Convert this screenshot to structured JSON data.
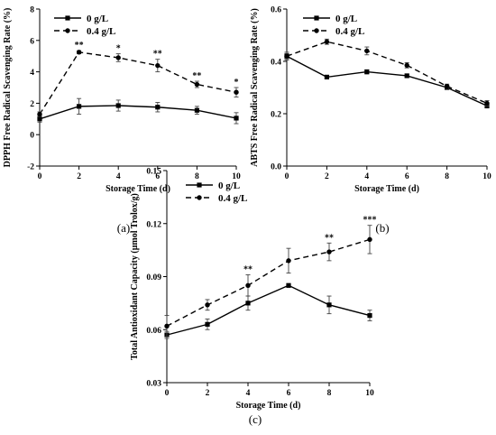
{
  "chart_data": [
    {
      "type": "line",
      "panel": "(a)",
      "xlabel": "Storage Time (d)",
      "ylabel": "DPPH Free Radical Scavenging Rate (%)",
      "x": [
        0,
        2,
        4,
        6,
        8,
        10
      ],
      "xlim": [
        0,
        10
      ],
      "ylim": [
        -2,
        8
      ],
      "yticks": [
        "-2",
        "0",
        "2",
        "4",
        "6",
        "8"
      ],
      "xticks": [
        "0",
        "2",
        "4",
        "6",
        "8",
        "10"
      ],
      "legend": "top-left",
      "series": [
        {
          "name": "0 g/L",
          "style": "solid",
          "marker": "square",
          "values": [
            1.0,
            1.8,
            1.85,
            1.75,
            1.55,
            1.05
          ],
          "errors": [
            0.2,
            0.5,
            0.35,
            0.3,
            0.25,
            0.35
          ]
        },
        {
          "name": "0.4 g/L",
          "style": "dashed",
          "marker": "circle",
          "values": [
            1.3,
            5.25,
            4.9,
            4.4,
            3.2,
            2.7
          ],
          "errors": [
            0.15,
            0.1,
            0.25,
            0.4,
            0.2,
            0.3
          ]
        }
      ],
      "annotations": [
        "",
        "**",
        "*",
        "**",
        "**",
        "*"
      ]
    },
    {
      "type": "line",
      "panel": "(b)",
      "xlabel": "Storage Time (d)",
      "ylabel": "ABTS Free Radical Scavenging Rate (%)",
      "x": [
        0,
        2,
        4,
        6,
        8,
        10
      ],
      "xlim": [
        0,
        10
      ],
      "ylim": [
        0,
        0.6
      ],
      "yticks": [
        "0.0",
        "0.2",
        "0.4",
        "0.6"
      ],
      "xticks": [
        "0",
        "2",
        "4",
        "6",
        "8",
        "10"
      ],
      "legend": "top-left",
      "series": [
        {
          "name": "0 g/L",
          "style": "solid",
          "marker": "square",
          "values": [
            0.42,
            0.34,
            0.36,
            0.345,
            0.3,
            0.23
          ],
          "errors": [
            0.01,
            0.005,
            0.008,
            0.006,
            0.005,
            0.008
          ]
        },
        {
          "name": "0.4 g/L",
          "style": "dashed",
          "marker": "circle",
          "values": [
            0.42,
            0.475,
            0.44,
            0.385,
            0.305,
            0.24
          ],
          "errors": [
            0.015,
            0.01,
            0.015,
            0.01,
            0.008,
            0.01
          ]
        }
      ],
      "annotations": [
        "",
        "",
        "",
        "",
        "",
        ""
      ]
    },
    {
      "type": "line",
      "panel": "(c)",
      "xlabel": "Storage Time (d)",
      "ylabel": "Total Antioxidant Capacity (μmol Trolox/g)",
      "x": [
        0,
        2,
        4,
        6,
        8,
        10
      ],
      "xlim": [
        0,
        10
      ],
      "ylim": [
        0.03,
        0.15
      ],
      "yticks": [
        "0.03",
        "0.06",
        "0.09",
        "0.12",
        "0.15"
      ],
      "xticks": [
        "0",
        "2",
        "4",
        "6",
        "8",
        "10"
      ],
      "legend": "top-left",
      "series": [
        {
          "name": "0 g/L",
          "style": "solid",
          "marker": "square",
          "values": [
            0.057,
            0.063,
            0.075,
            0.085,
            0.074,
            0.068
          ],
          "errors": [
            0.002,
            0.003,
            0.004,
            0.001,
            0.005,
            0.003
          ]
        },
        {
          "name": "0.4 g/L",
          "style": "dashed",
          "marker": "circle",
          "values": [
            0.062,
            0.074,
            0.085,
            0.099,
            0.104,
            0.111
          ],
          "errors": [
            0.006,
            0.003,
            0.006,
            0.007,
            0.005,
            0.008
          ]
        }
      ],
      "annotations": [
        "",
        "",
        "**",
        "",
        "**",
        "***"
      ]
    }
  ]
}
